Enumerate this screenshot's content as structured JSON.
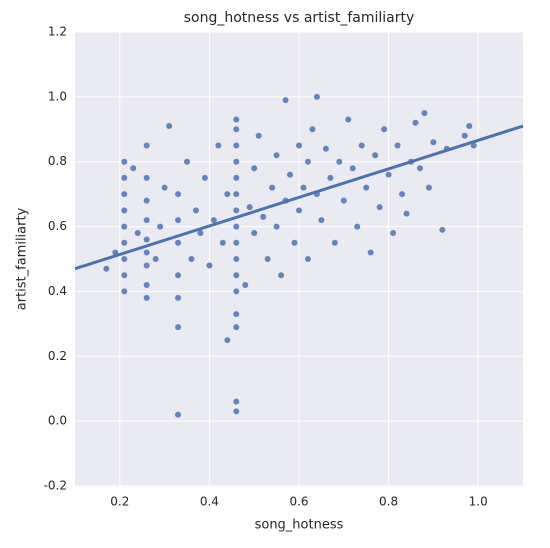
{
  "chart_data": {
    "type": "scatter",
    "title": "song_hotness vs artist_familiarty",
    "x_label": "song_hotness",
    "y_label": "artist_familiarty",
    "xlim": [
      0.1,
      1.1
    ],
    "ylim": [
      -0.2,
      1.2
    ],
    "xticks": [
      0.2,
      0.4,
      0.6,
      0.8,
      {
        "value": 1,
        "label": "1.0"
      }
    ],
    "yticks": [
      -0.2,
      {
        "value": 0,
        "label": "0.0"
      },
      0.2,
      0.4,
      0.6,
      0.8,
      {
        "value": 1,
        "label": "1.0"
      },
      1.2
    ],
    "grid": true,
    "series": [
      {
        "color": "#4c72b0",
        "x": [
          0.21,
          0.21,
          0.21,
          0.21,
          0.21,
          0.21,
          0.21,
          0.21,
          0.21,
          0.26,
          0.26,
          0.26,
          0.26,
          0.26,
          0.26,
          0.26,
          0.26,
          0.26,
          0.33,
          0.33,
          0.33,
          0.33,
          0.33,
          0.33,
          0.33,
          0.46,
          0.46,
          0.46,
          0.46,
          0.46,
          0.46,
          0.46,
          0.46,
          0.46,
          0.46,
          0.46,
          0.46,
          0.46,
          0.46,
          0.46,
          0.46,
          0.17,
          0.19,
          0.23,
          0.24,
          0.28,
          0.29,
          0.3,
          0.31,
          0.35,
          0.36,
          0.37,
          0.38,
          0.39,
          0.4,
          0.41,
          0.42,
          0.43,
          0.44,
          0.44,
          0.48,
          0.49,
          0.5,
          0.5,
          0.51,
          0.52,
          0.53,
          0.54,
          0.55,
          0.55,
          0.56,
          0.57,
          0.57,
          0.58,
          0.59,
          0.6,
          0.6,
          0.61,
          0.62,
          0.62,
          0.63,
          0.64,
          0.64,
          0.65,
          0.66,
          0.67,
          0.68,
          0.69,
          0.7,
          0.71,
          0.72,
          0.73,
          0.74,
          0.75,
          0.76,
          0.77,
          0.78,
          0.79,
          0.8,
          0.81,
          0.82,
          0.83,
          0.84,
          0.85,
          0.86,
          0.87,
          0.88,
          0.89,
          0.9,
          0.92,
          0.93,
          0.97,
          0.98,
          0.99
        ],
        "y": [
          0.4,
          0.45,
          0.5,
          0.55,
          0.6,
          0.65,
          0.7,
          0.75,
          0.8,
          0.38,
          0.42,
          0.48,
          0.52,
          0.56,
          0.62,
          0.68,
          0.75,
          0.85,
          0.02,
          0.29,
          0.38,
          0.45,
          0.55,
          0.62,
          0.7,
          0.03,
          0.06,
          0.29,
          0.33,
          0.4,
          0.45,
          0.5,
          0.55,
          0.6,
          0.65,
          0.7,
          0.75,
          0.8,
          0.85,
          0.9,
          0.93,
          0.47,
          0.52,
          0.78,
          0.58,
          0.5,
          0.6,
          0.72,
          0.91,
          0.8,
          0.5,
          0.65,
          0.58,
          0.75,
          0.48,
          0.62,
          0.85,
          0.55,
          0.7,
          0.25,
          0.42,
          0.66,
          0.58,
          0.78,
          0.88,
          0.63,
          0.5,
          0.72,
          0.82,
          0.6,
          0.45,
          0.68,
          0.99,
          0.76,
          0.55,
          0.85,
          0.65,
          0.72,
          0.8,
          0.5,
          0.9,
          1.0,
          0.7,
          0.62,
          0.84,
          0.75,
          0.55,
          0.8,
          0.68,
          0.93,
          0.78,
          0.6,
          0.85,
          0.72,
          0.52,
          0.82,
          0.66,
          0.9,
          0.76,
          0.58,
          0.85,
          0.7,
          0.64,
          0.8,
          0.92,
          0.78,
          0.95,
          0.72,
          0.86,
          0.59,
          0.84,
          0.88,
          0.91,
          0.85
        ]
      }
    ],
    "regression": {
      "color": "#4c72b0",
      "x": [
        0.1,
        1.1
      ],
      "y": [
        0.47,
        0.91
      ]
    }
  }
}
